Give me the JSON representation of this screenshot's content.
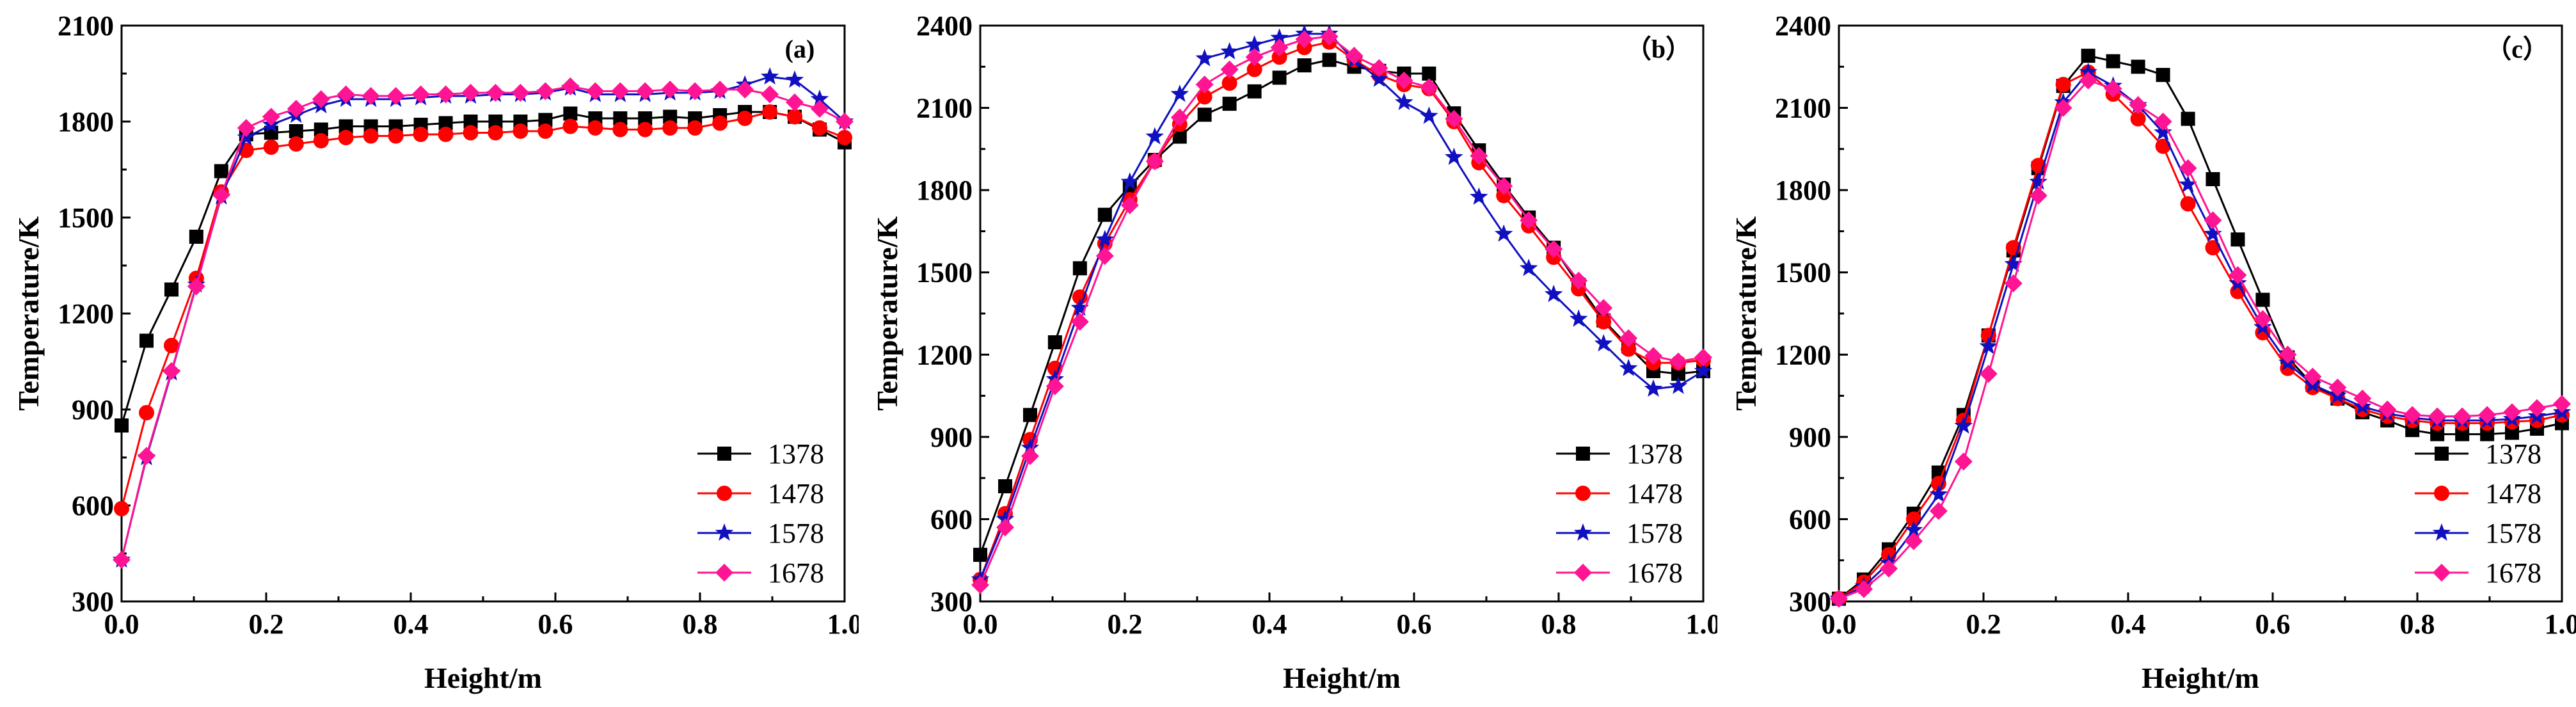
{
  "figure": {
    "panels": [
      {
        "id": "a",
        "label": "(a)"
      },
      {
        "id": "b",
        "label": "（b）"
      },
      {
        "id": "c",
        "label": "（c）"
      }
    ]
  },
  "chart_data": [
    {
      "type": "line",
      "panel_label": "(a)",
      "xlabel": "Height/m",
      "ylabel": "Temperature/K",
      "xlim": [
        0.0,
        1.0
      ],
      "ylim": [
        300,
        2100
      ],
      "xticks": [
        0.0,
        0.2,
        0.4,
        0.6,
        0.8,
        1.0
      ],
      "xtick_labels": [
        "0.0",
        "0.2",
        "0.4",
        "0.6",
        "0.8",
        "1.0"
      ],
      "yticks": [
        300,
        600,
        900,
        1200,
        1500,
        1800,
        2100
      ],
      "ytick_labels": [
        "300",
        "600",
        "900",
        "1200",
        "1500",
        "1800",
        "2100"
      ],
      "legend_position": "bottom-right",
      "x": [
        0.0,
        0.0345,
        0.069,
        0.1034,
        0.1379,
        0.1724,
        0.2069,
        0.2414,
        0.2759,
        0.3103,
        0.3448,
        0.3793,
        0.4138,
        0.4483,
        0.4828,
        0.5172,
        0.5517,
        0.5862,
        0.6207,
        0.6552,
        0.6897,
        0.7241,
        0.7586,
        0.7931,
        0.8276,
        0.8621,
        0.8966,
        0.931,
        0.9655,
        1.0
      ],
      "series": [
        {
          "name": "1378",
          "color": "#000000",
          "marker": "square",
          "values": [
            850,
            1115,
            1275,
            1440,
            1645,
            1760,
            1765,
            1770,
            1775,
            1785,
            1785,
            1785,
            1790,
            1795,
            1800,
            1800,
            1800,
            1805,
            1825,
            1810,
            1810,
            1810,
            1815,
            1810,
            1820,
            1830,
            1830,
            1815,
            1775,
            1735
          ]
        },
        {
          "name": "1478",
          "color": "#ff0000",
          "marker": "circle",
          "values": [
            590,
            890,
            1100,
            1310,
            1580,
            1710,
            1720,
            1730,
            1740,
            1750,
            1755,
            1755,
            1760,
            1760,
            1765,
            1765,
            1770,
            1770,
            1785,
            1780,
            1775,
            1775,
            1780,
            1780,
            1795,
            1810,
            1830,
            1815,
            1780,
            1750
          ]
        },
        {
          "name": "1578",
          "color": "#1010c0",
          "marker": "star",
          "values": [
            430,
            750,
            1015,
            1290,
            1565,
            1750,
            1790,
            1820,
            1850,
            1870,
            1870,
            1870,
            1875,
            1880,
            1880,
            1885,
            1885,
            1890,
            1905,
            1885,
            1885,
            1885,
            1890,
            1890,
            1895,
            1915,
            1940,
            1930,
            1870,
            1800
          ]
        },
        {
          "name": "1678",
          "color": "#ff1493",
          "marker": "diamond",
          "values": [
            430,
            755,
            1020,
            1285,
            1570,
            1780,
            1815,
            1840,
            1870,
            1885,
            1880,
            1880,
            1885,
            1885,
            1890,
            1890,
            1890,
            1895,
            1910,
            1895,
            1895,
            1895,
            1900,
            1895,
            1900,
            1900,
            1885,
            1860,
            1840,
            1800
          ]
        }
      ]
    },
    {
      "type": "line",
      "panel_label": "（b）",
      "xlabel": "Height/m",
      "ylabel": "Temperature/K",
      "xlim": [
        0.0,
        1.0
      ],
      "ylim": [
        300,
        2400
      ],
      "xticks": [
        0.0,
        0.2,
        0.4,
        0.6,
        0.8,
        1.0
      ],
      "xtick_labels": [
        "0.0",
        "0.2",
        "0.4",
        "0.6",
        "0.8",
        "1.0"
      ],
      "yticks": [
        300,
        600,
        900,
        1200,
        1500,
        1800,
        2100,
        2400
      ],
      "ytick_labels": [
        "300",
        "600",
        "900",
        "1200",
        "1500",
        "1800",
        "2100",
        "2400"
      ],
      "legend_position": "bottom-right",
      "x": [
        0.0,
        0.0345,
        0.069,
        0.1034,
        0.1379,
        0.1724,
        0.2069,
        0.2414,
        0.2759,
        0.3103,
        0.3448,
        0.3793,
        0.4138,
        0.4483,
        0.4828,
        0.5172,
        0.5517,
        0.5862,
        0.6207,
        0.6552,
        0.6897,
        0.7241,
        0.7586,
        0.7931,
        0.8276,
        0.8621,
        0.8966,
        0.931,
        0.9655,
        1.0
      ],
      "series": [
        {
          "name": "1378",
          "color": "#000000",
          "marker": "square",
          "values": [
            470,
            720,
            980,
            1245,
            1515,
            1710,
            1815,
            1910,
            1995,
            2075,
            2115,
            2160,
            2210,
            2255,
            2275,
            2250,
            2235,
            2225,
            2225,
            2080,
            1945,
            1820,
            1700,
            1590,
            1455,
            1325,
            1230,
            1140,
            1130,
            1140
          ]
        },
        {
          "name": "1478",
          "color": "#ff0000",
          "marker": "circle",
          "values": [
            380,
            620,
            890,
            1150,
            1410,
            1605,
            1765,
            1905,
            2040,
            2140,
            2190,
            2240,
            2285,
            2320,
            2340,
            2275,
            2220,
            2185,
            2170,
            2050,
            1900,
            1780,
            1670,
            1555,
            1440,
            1320,
            1220,
            1170,
            1170,
            1180
          ]
        },
        {
          "name": "1578",
          "color": "#1010c0",
          "marker": "star",
          "values": [
            380,
            600,
            860,
            1110,
            1370,
            1620,
            1830,
            1995,
            2150,
            2280,
            2305,
            2330,
            2355,
            2370,
            2370,
            2275,
            2205,
            2120,
            2070,
            1920,
            1775,
            1640,
            1515,
            1420,
            1330,
            1240,
            1150,
            1075,
            1085,
            1140
          ]
        },
        {
          "name": "1678",
          "color": "#ff1493",
          "marker": "diamond",
          "values": [
            360,
            570,
            830,
            1085,
            1320,
            1560,
            1745,
            1905,
            2065,
            2185,
            2240,
            2285,
            2320,
            2350,
            2360,
            2290,
            2245,
            2200,
            2175,
            2060,
            1925,
            1815,
            1690,
            1585,
            1470,
            1370,
            1260,
            1195,
            1175,
            1190
          ]
        }
      ]
    },
    {
      "type": "line",
      "panel_label": "（c）",
      "xlabel": "Height/m",
      "ylabel": "Temperature/K",
      "xlim": [
        0.0,
        1.0
      ],
      "ylim": [
        300,
        2400
      ],
      "xticks": [
        0.0,
        0.2,
        0.4,
        0.6,
        0.8,
        1.0
      ],
      "xtick_labels": [
        "0.0",
        "0.2",
        "0.4",
        "0.6",
        "0.8",
        "1.0"
      ],
      "yticks": [
        300,
        600,
        900,
        1200,
        1500,
        1800,
        2100,
        2400
      ],
      "ytick_labels": [
        "300",
        "600",
        "900",
        "1200",
        "1500",
        "1800",
        "2100",
        "2400"
      ],
      "legend_position": "bottom-right",
      "x": [
        0.0,
        0.0345,
        0.069,
        0.1034,
        0.1379,
        0.1724,
        0.2069,
        0.2414,
        0.2759,
        0.3103,
        0.3448,
        0.3793,
        0.4138,
        0.4483,
        0.4828,
        0.5172,
        0.5517,
        0.5862,
        0.6207,
        0.6552,
        0.6897,
        0.7241,
        0.7586,
        0.7931,
        0.8276,
        0.8621,
        0.8966,
        0.931,
        0.9655,
        1.0
      ],
      "series": [
        {
          "name": "1378",
          "color": "#000000",
          "marker": "square",
          "values": [
            310,
            380,
            490,
            620,
            770,
            980,
            1270,
            1580,
            1880,
            2180,
            2290,
            2270,
            2250,
            2220,
            2060,
            1840,
            1620,
            1400,
            1190,
            1090,
            1040,
            990,
            960,
            925,
            910,
            910,
            910,
            915,
            930,
            950
          ]
        },
        {
          "name": "1478",
          "color": "#ff0000",
          "marker": "circle",
          "values": [
            310,
            370,
            470,
            600,
            730,
            960,
            1270,
            1590,
            1890,
            2185,
            2230,
            2150,
            2060,
            1960,
            1750,
            1590,
            1430,
            1280,
            1150,
            1080,
            1040,
            1000,
            975,
            960,
            950,
            950,
            950,
            955,
            960,
            980
          ]
        },
        {
          "name": "1578",
          "color": "#1010c0",
          "marker": "star",
          "values": [
            310,
            355,
            440,
            560,
            690,
            940,
            1230,
            1530,
            1830,
            2120,
            2230,
            2180,
            2110,
            2010,
            1820,
            1640,
            1460,
            1300,
            1170,
            1090,
            1050,
            1010,
            985,
            970,
            960,
            960,
            960,
            965,
            975,
            990
          ]
        },
        {
          "name": "1678",
          "color": "#ff1493",
          "marker": "diamond",
          "values": [
            310,
            345,
            420,
            520,
            630,
            810,
            1130,
            1460,
            1780,
            2100,
            2200,
            2170,
            2110,
            2050,
            1880,
            1690,
            1490,
            1330,
            1200,
            1120,
            1080,
            1040,
            1000,
            980,
            975,
            975,
            980,
            990,
            1005,
            1020
          ]
        }
      ]
    }
  ]
}
